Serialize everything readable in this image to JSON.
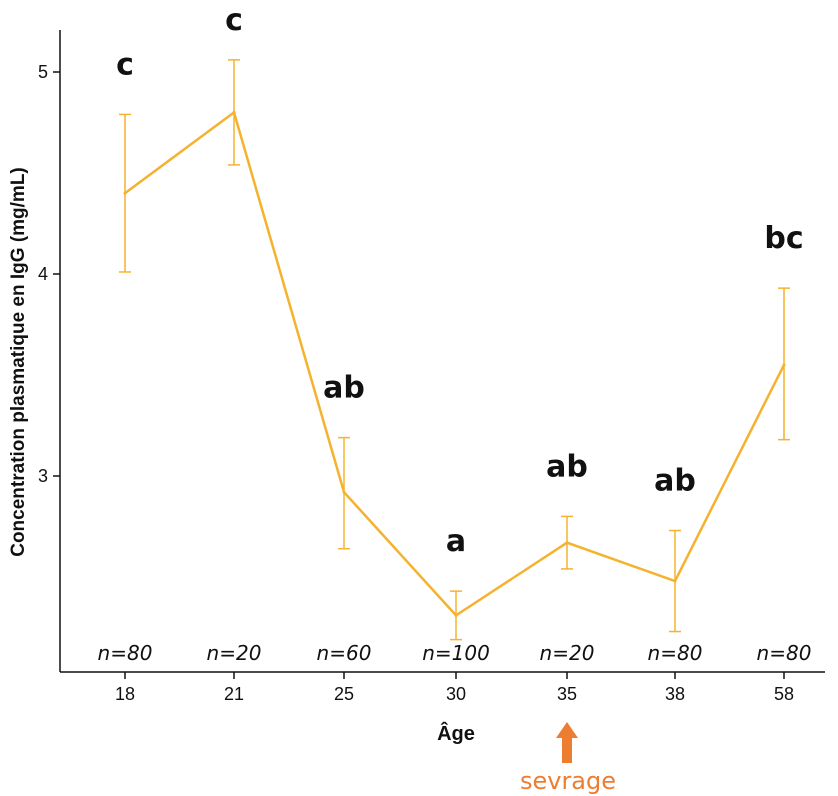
{
  "chart_data": {
    "type": "line",
    "xlabel": "Âge",
    "ylabel": "Concentration plasmatique en IgG (mg/mL)",
    "categories": [
      "18",
      "21",
      "25",
      "30",
      "35",
      "38",
      "58"
    ],
    "values": [
      4.4,
      4.8,
      2.92,
      2.31,
      2.67,
      2.48,
      3.55
    ],
    "error_low": [
      4.01,
      4.54,
      2.64,
      2.19,
      2.54,
      2.23,
      3.18
    ],
    "error_high": [
      4.79,
      5.06,
      3.19,
      2.43,
      2.8,
      2.73,
      3.93
    ],
    "significance": [
      "c",
      "c",
      "ab",
      "a",
      "ab",
      "ab",
      "bc"
    ],
    "n_labels": [
      "n=80",
      "n=20",
      "n=60",
      "n=100",
      "n=20",
      "n=80",
      "n=80"
    ],
    "y_ticks": [
      "3",
      "4",
      "5"
    ],
    "ylim": [
      2.1,
      5.2
    ],
    "annotation": {
      "text": "sevrage",
      "at": "35"
    },
    "colors": {
      "line": "#F5B22E",
      "arrow": "#ED7D31",
      "axis": "#111111"
    },
    "grid": false
  }
}
